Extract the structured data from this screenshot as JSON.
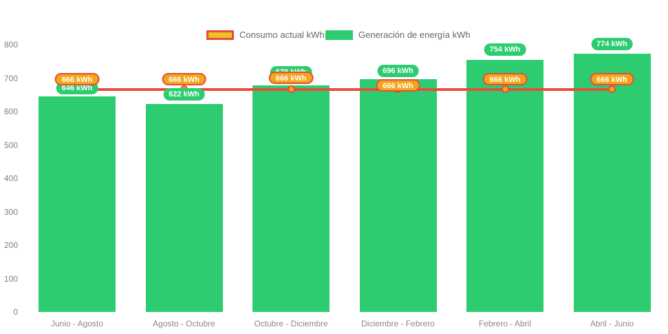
{
  "chart_data": {
    "type": "bar",
    "subtype": "bar-line-combo",
    "title": "",
    "categories": [
      "Junio - Agosto",
      "Agosto - Octubre",
      "Octubre - Diciembre",
      "Diciembre - Febrero",
      "Febrero - Abril",
      "Abril - Junio"
    ],
    "series": [
      {
        "name": "Consumo actual kWh",
        "type": "line",
        "values": [
          666,
          666,
          666,
          666,
          666,
          666
        ],
        "labels": [
          "666 kWh",
          "666 kWh",
          "666 kWh",
          "666 kWh",
          "666 kWh",
          "666 kWh"
        ],
        "line_color": "#e74c3c",
        "point_fill": "#f2a71b",
        "point_border": "#e74c3c",
        "label_fill": "#f2a71b",
        "label_border": "#e74c3c"
      },
      {
        "name": "Generación de energía kWh",
        "type": "bar",
        "values": [
          646,
          622,
          678,
          696,
          754,
          774
        ],
        "labels": [
          "646 kWh",
          "622 kWh",
          "678 kWh",
          "696 kWh",
          "754 kWh",
          "774 kWh"
        ],
        "bar_color": "#2ecc71",
        "label_fill": "#2ecc71"
      }
    ],
    "unit": "kWh",
    "ylim": [
      0,
      800
    ],
    "yticks": [
      0,
      100,
      200,
      300,
      400,
      500,
      600,
      700,
      800
    ],
    "grid": false,
    "legend_position": "top"
  },
  "legend": {
    "consumo": {
      "label": "Consumo actual kWh",
      "swatch_fill": "#edc127",
      "swatch_border": "#e74c3c"
    },
    "generacion": {
      "label": "Generación de energía kWh",
      "swatch_fill": "#2ecc71"
    }
  },
  "colors": {
    "background": "#ffffff",
    "bar_green": "#2ecc71",
    "line_red": "#e74c3c",
    "point_gold": "#f2a71b",
    "axis_text": "#808080",
    "legend_text": "#666666",
    "pill_text": "#ffffff"
  }
}
